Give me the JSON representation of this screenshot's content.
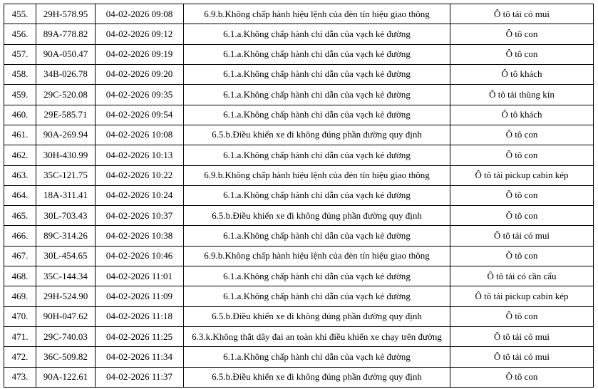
{
  "page": {
    "background_color": "#ffffff",
    "border_color": "#000000",
    "text_color": "#000000"
  },
  "table": {
    "column_keys": [
      "stt",
      "plate",
      "datetime",
      "violation",
      "vehicle"
    ],
    "column_semantic_names": [
      "row-number",
      "license-plate",
      "violation-datetime",
      "violation-description",
      "vehicle-type"
    ],
    "rows": [
      {
        "stt": "455.",
        "plate": "29H-578.95",
        "datetime": "04-02-2026 09:08",
        "violation": "6.9.b.Không chấp hành hiệu lệnh của đèn tín hiệu giao thông",
        "vehicle": "Ô tô tải có mui"
      },
      {
        "stt": "456.",
        "plate": "89A-778.82",
        "datetime": "04-02-2026 09:12",
        "violation": "6.1.a.Không chấp hành chỉ dẫn của vạch kẻ đường",
        "vehicle": "Ô tô con"
      },
      {
        "stt": "457.",
        "plate": "90A-050.47",
        "datetime": "04-02-2026 09:19",
        "violation": "6.1.a.Không chấp hành chỉ dẫn của vạch kẻ đường",
        "vehicle": "Ô tô con"
      },
      {
        "stt": "458.",
        "plate": "34B-026.78",
        "datetime": "04-02-2026 09:20",
        "violation": "6.1.a.Không chấp hành chỉ dẫn của vạch kẻ đường",
        "vehicle": "Ô tô khách"
      },
      {
        "stt": "459.",
        "plate": "29C-520.08",
        "datetime": "04-02-2026 09:35",
        "violation": "6.1.a.Không chấp hành chỉ dẫn của vạch kẻ đường",
        "vehicle": "Ô tô tải thùng kín"
      },
      {
        "stt": "460.",
        "plate": "29E-585.71",
        "datetime": "04-02-2026 09:54",
        "violation": "6.1.a.Không chấp hành chỉ dẫn của vạch kẻ đường",
        "vehicle": "Ô tô khách"
      },
      {
        "stt": "461.",
        "plate": "90A-269.94",
        "datetime": "04-02-2026 10:08",
        "violation": "6.5.b.Điều khiển xe đi không đúng phần đường quy định",
        "vehicle": "Ô tô con"
      },
      {
        "stt": "462.",
        "plate": "30H-430.99",
        "datetime": "04-02-2026 10:13",
        "violation": "6.1.a.Không chấp hành chỉ dẫn của vạch kẻ đường",
        "vehicle": "Ô tô con"
      },
      {
        "stt": "463.",
        "plate": "35C-121.75",
        "datetime": "04-02-2026 10:22",
        "violation": "6.9.b.Không chấp hành hiệu lệnh của đèn tín hiệu giao thông",
        "vehicle": "Ô tô tải pickup cabin kép"
      },
      {
        "stt": "464.",
        "plate": "18A-311.41",
        "datetime": "04-02-2026 10:24",
        "violation": "6.1.a.Không chấp hành chỉ dẫn của vạch kẻ đường",
        "vehicle": "Ô tô con"
      },
      {
        "stt": "465.",
        "plate": "30L-703.43",
        "datetime": "04-02-2026 10:37",
        "violation": "6.5.b.Điều khiển xe đi không đúng phần đường quy định",
        "vehicle": "Ô tô con"
      },
      {
        "stt": "466.",
        "plate": "89C-314.26",
        "datetime": "04-02-2026 10:38",
        "violation": "6.1.a.Không chấp hành chỉ dẫn của vạch kẻ đường",
        "vehicle": "Ô tô tải có mui"
      },
      {
        "stt": "467.",
        "plate": "30L-454.65",
        "datetime": "04-02-2026 10:46",
        "violation": "6.9.b.Không chấp hành hiệu lệnh của đèn tín hiệu giao thông",
        "vehicle": "Ô tô con"
      },
      {
        "stt": "468.",
        "plate": "35C-144.34",
        "datetime": "04-02-2026 11:01",
        "violation": "6.1.a.Không chấp hành chỉ dẫn của vạch kẻ đường",
        "vehicle": "Ô tô tải có cần cẩu"
      },
      {
        "stt": "469.",
        "plate": "29H-524.90",
        "datetime": "04-02-2026 11:09",
        "violation": "6.1.a.Không chấp hành chỉ dẫn của vạch kẻ đường",
        "vehicle": "Ô tô tải pickup cabin kép"
      },
      {
        "stt": "470.",
        "plate": "90H-047.62",
        "datetime": "04-02-2026 11:18",
        "violation": "6.5.b.Điều khiển xe đi không đúng phần đường quy định",
        "vehicle": "Ô tô con"
      },
      {
        "stt": "471.",
        "plate": "29C-740.03",
        "datetime": "04-02-2026 11:25",
        "violation": "6.3.k.Không thắt dây đai an toàn khi điều khiển xe chạy trên đường",
        "vehicle": "Ô tô tải có mui"
      },
      {
        "stt": "472.",
        "plate": "36C-509.82",
        "datetime": "04-02-2026 11:34",
        "violation": "6.1.a.Không chấp hành chỉ dẫn của vạch kẻ đường",
        "vehicle": "Ô tô tải có mui"
      },
      {
        "stt": "473.",
        "plate": "90A-122.61",
        "datetime": "04-02-2026 11:37",
        "violation": "6.5.b.Điều khiển xe đi không đúng phần đường quy định",
        "vehicle": "Ô tô con"
      }
    ]
  }
}
